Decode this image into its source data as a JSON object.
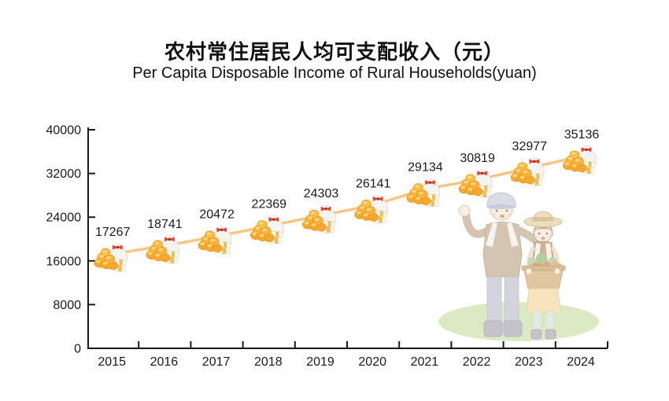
{
  "chart_data": {
    "type": "line",
    "title": "农村常住居民人均可支配收入（元）",
    "subtitle": "Per Capita Disposable Income of Rural Households(yuan)",
    "categories": [
      "2015",
      "2016",
      "2017",
      "2018",
      "2019",
      "2020",
      "2021",
      "2022",
      "2023",
      "2024"
    ],
    "values": [
      17267,
      18741,
      20472,
      22369,
      24303,
      26141,
      29134,
      30819,
      32977,
      35136
    ],
    "xlabel": "",
    "ylabel": "",
    "ylim": [
      0,
      40000
    ],
    "yticks": [
      0,
      8000,
      16000,
      24000,
      32000,
      40000
    ],
    "grid": false,
    "legend": false,
    "marker_icon": "money-bag-gold-coins-icon",
    "colors": {
      "line": "#F9C583",
      "axis": "#1A1A1A",
      "text": "#1A1A1A",
      "coin_gold": "#F6A92E",
      "bow_red": "#E63E2C",
      "cash_band": "#F4BC50"
    }
  }
}
